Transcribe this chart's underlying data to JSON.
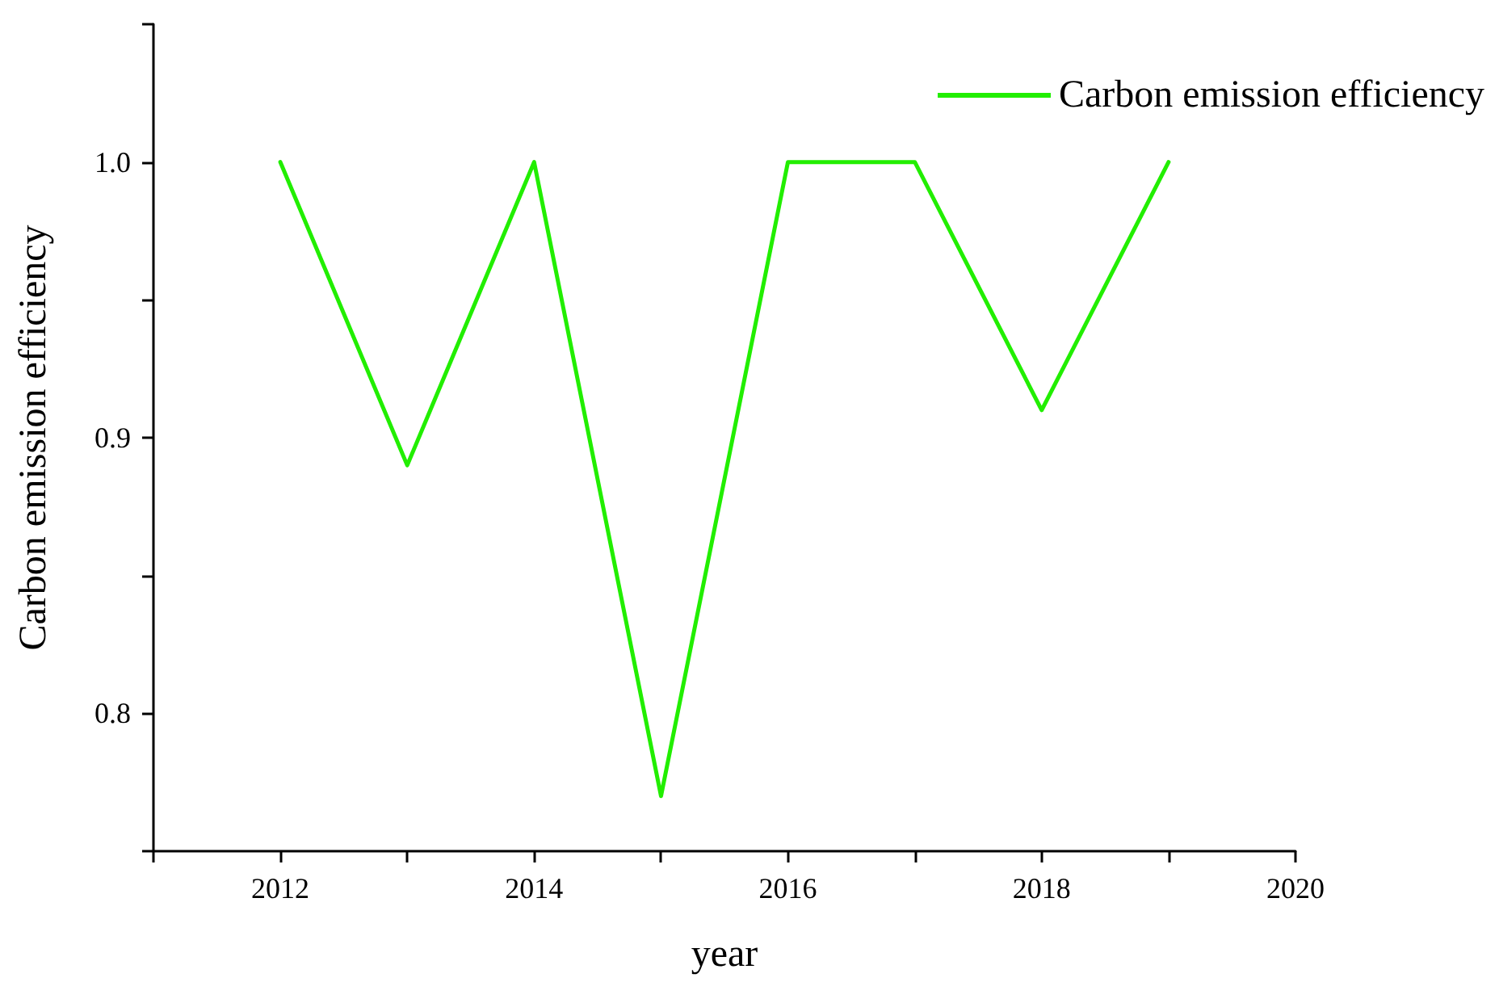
{
  "chart_data": {
    "type": "line",
    "xlabel": "year",
    "ylabel": "Carbon emission efficiency",
    "x": [
      2012,
      2013,
      2014,
      2015,
      2016,
      2017,
      2018,
      2019
    ],
    "series": [
      {
        "name": "Carbon emission efficiency",
        "color": "#22ee00",
        "values": [
          1.0,
          0.89,
          1.0,
          0.77,
          1.0,
          1.0,
          0.91,
          1.0
        ]
      }
    ],
    "xlim": [
      2011,
      2020
    ],
    "xticks": [
      {
        "value": 2011,
        "label": null
      },
      2012,
      {
        "value": 2013,
        "label": null
      },
      2014,
      {
        "value": 2015,
        "label": null
      },
      2016,
      {
        "value": 2017,
        "label": null
      },
      2018,
      {
        "value": 2019,
        "label": null
      },
      2020
    ],
    "ylim": [
      0.75,
      1.05
    ],
    "yticks": [
      {
        "value": 0.75,
        "label": null
      },
      0.8,
      {
        "value": 0.85,
        "label": null
      },
      0.9,
      {
        "value": 0.95,
        "label": null
      },
      {
        "value": 1,
        "label": "1.0"
      },
      {
        "value": 1.05,
        "label": null
      }
    ],
    "grid": false,
    "legend": "top right",
    "marker": "none",
    "line_style": "solid"
  }
}
